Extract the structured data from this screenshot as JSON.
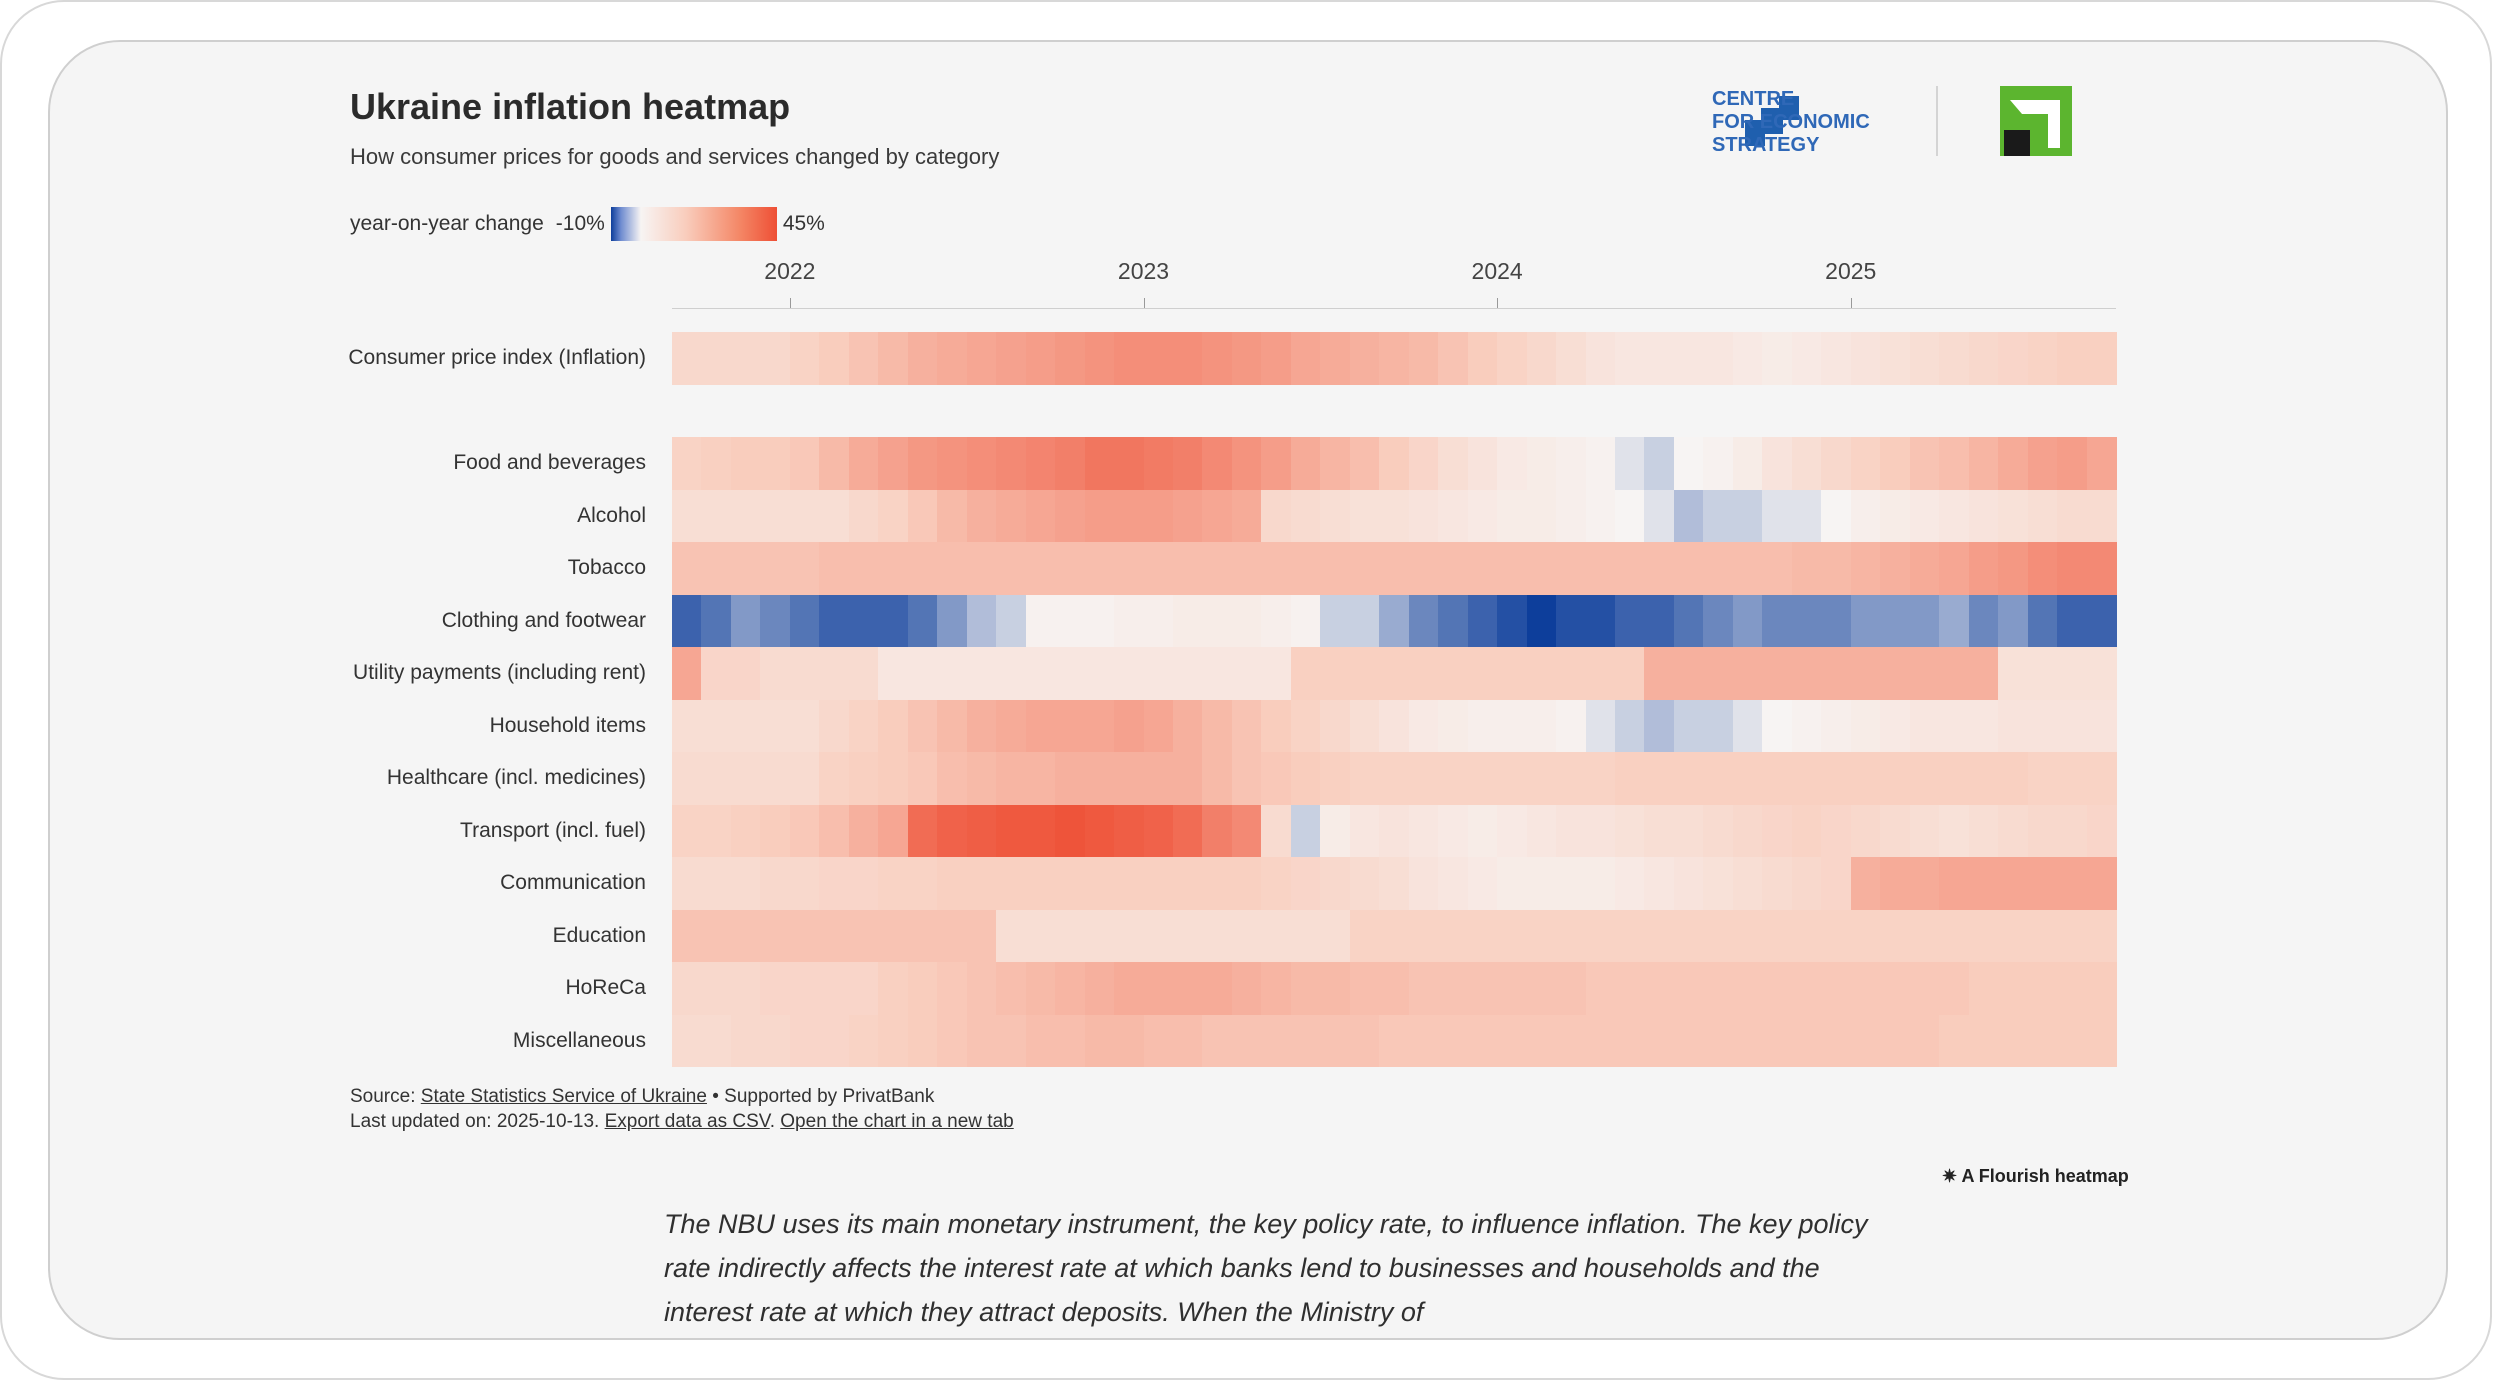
{
  "header": {
    "title": "Ukraine inflation heatmap",
    "subtitle": "How consumer prices for goods and services changed by category"
  },
  "legend": {
    "label": "year-on-year change",
    "min": "-10%",
    "max": "45%"
  },
  "brand": {
    "line1": "CENTRE",
    "line2": "FOR ECONOMIC",
    "line3": "STRATEGY"
  },
  "colors": {
    "negative_max": "#0d3e9b",
    "neutral": "#f7f4f3",
    "positive_max": "#ee4f35",
    "brand_blue": "#1f5fae",
    "bank_green": "#5cb52f"
  },
  "chart_data": {
    "type": "heatmap",
    "title": "Ukraine inflation heatmap",
    "subtitle": "How consumer prices for goods and services changed by category",
    "value_label": "year-on-year change",
    "color_range": [
      -10,
      45
    ],
    "x_ticks": [
      "2022",
      "2023",
      "2024",
      "2025"
    ],
    "x_start": "2021-09",
    "x_end": "2025-08",
    "rows": [
      {
        "name": "Consumer price index (Inflation)",
        "values": [
          10,
          10,
          10,
          10,
          12,
          14,
          16,
          18,
          20,
          21,
          22,
          23,
          24,
          25,
          26,
          27,
          27,
          27,
          26,
          25,
          24,
          22,
          21,
          20,
          19,
          18,
          16,
          14,
          12,
          10,
          8,
          6,
          5,
          5,
          5,
          5,
          4,
          3,
          4,
          5,
          6,
          7,
          8,
          9,
          10,
          11,
          12,
          13,
          13
        ]
      },
      {
        "name": "Food and beverages",
        "values": [
          12,
          13,
          14,
          14,
          15,
          18,
          21,
          23,
          25,
          26,
          27,
          28,
          29,
          30,
          32,
          32,
          31,
          30,
          28,
          26,
          24,
          21,
          19,
          17,
          14,
          11,
          8,
          6,
          4,
          3,
          2,
          1,
          -1,
          -2,
          0,
          1,
          3,
          6,
          8,
          10,
          12,
          14,
          16,
          17,
          19,
          21,
          23,
          24,
          22
        ]
      },
      {
        "name": "Alcohol",
        "values": [
          8,
          8,
          8,
          8,
          8,
          8,
          10,
          12,
          15,
          18,
          20,
          21,
          22,
          23,
          24,
          24,
          24,
          23,
          22,
          21,
          10,
          9,
          8,
          7,
          7,
          6,
          5,
          4,
          3,
          3,
          2,
          1,
          0,
          -1,
          -3,
          -2,
          -2,
          -1,
          -1,
          0,
          2,
          3,
          4,
          5,
          6,
          7,
          8,
          9,
          9
        ]
      },
      {
        "name": "Tobacco",
        "values": [
          16,
          16,
          16,
          16,
          16,
          17,
          17,
          17,
          17,
          17,
          17,
          17,
          17,
          17,
          17,
          17,
          17,
          17,
          17,
          17,
          17,
          17,
          17,
          17,
          17,
          17,
          17,
          17,
          17,
          17,
          17,
          17,
          17,
          17,
          17,
          17,
          17,
          17,
          18,
          18,
          19,
          20,
          21,
          22,
          24,
          25,
          27,
          28,
          28
        ]
      },
      {
        "name": "Clothing and footwear",
        "values": [
          -8,
          -7,
          -5,
          -6,
          -7,
          -8,
          -8,
          -8,
          -7,
          -5,
          -3,
          -2,
          1,
          1,
          1,
          2,
          2,
          3,
          3,
          3,
          2,
          1,
          -2,
          -2,
          -4,
          -6,
          -7,
          -8,
          -9,
          -10,
          -9,
          -9,
          -8,
          -8,
          -7,
          -6,
          -5,
          -6,
          -6,
          -6,
          -5,
          -5,
          -5,
          -4,
          -6,
          -5,
          -7,
          -8,
          -8
        ]
      },
      {
        "name": "Utility payments (including rent)",
        "values": [
          22,
          11,
          11,
          9,
          9,
          9,
          9,
          5,
          5,
          5,
          5,
          5,
          5,
          5,
          5,
          5,
          5,
          5,
          5,
          5,
          5,
          13,
          13,
          13,
          13,
          13,
          13,
          13,
          13,
          13,
          13,
          13,
          13,
          20,
          20,
          20,
          20,
          20,
          20,
          20,
          20,
          20,
          20,
          20,
          20,
          7,
          7,
          7,
          7
        ]
      },
      {
        "name": "Household items",
        "values": [
          8,
          8,
          8,
          8,
          8,
          10,
          12,
          14,
          16,
          18,
          20,
          21,
          22,
          22,
          22,
          23,
          22,
          20,
          18,
          16,
          14,
          12,
          10,
          8,
          6,
          4,
          3,
          2,
          2,
          2,
          1,
          -1,
          -2,
          -3,
          -2,
          -2,
          -1,
          0,
          1,
          2,
          3,
          4,
          5,
          5,
          5,
          6,
          6,
          6,
          6
        ]
      },
      {
        "name": "Healthcare (incl. medicines)",
        "values": [
          9,
          9,
          9,
          9,
          9,
          12,
          13,
          14,
          15,
          17,
          18,
          19,
          19,
          20,
          20,
          20,
          20,
          20,
          18,
          16,
          15,
          14,
          13,
          12,
          12,
          12,
          12,
          12,
          12,
          12,
          12,
          12,
          13,
          13,
          13,
          13,
          13,
          13,
          13,
          13,
          13,
          13,
          13,
          13,
          13,
          13,
          12,
          12,
          12
        ]
      },
      {
        "name": "Transport (incl. fuel)",
        "values": [
          12,
          12,
          13,
          14,
          15,
          17,
          20,
          22,
          34,
          36,
          37,
          38,
          38,
          39,
          38,
          37,
          36,
          34,
          30,
          28,
          9,
          -2,
          3,
          5,
          6,
          5,
          4,
          3,
          4,
          5,
          6,
          6,
          7,
          8,
          8,
          9,
          10,
          11,
          12,
          11,
          10,
          9,
          8,
          7,
          8,
          9,
          10,
          10,
          11
        ]
      },
      {
        "name": "Communication",
        "values": [
          9,
          9,
          9,
          10,
          10,
          11,
          11,
          12,
          12,
          13,
          13,
          13,
          13,
          13,
          13,
          13,
          13,
          13,
          13,
          13,
          12,
          11,
          10,
          9,
          8,
          6,
          5,
          4,
          3,
          3,
          3,
          3,
          4,
          5,
          6,
          7,
          8,
          9,
          10,
          11,
          20,
          21,
          21,
          22,
          22,
          22,
          22,
          22,
          22
        ]
      },
      {
        "name": "Education",
        "values": [
          16,
          16,
          16,
          16,
          16,
          16,
          16,
          16,
          16,
          16,
          16,
          8,
          8,
          8,
          8,
          8,
          8,
          8,
          8,
          8,
          8,
          8,
          8,
          12,
          12,
          12,
          12,
          12,
          12,
          12,
          12,
          12,
          12,
          12,
          12,
          12,
          12,
          12,
          12,
          12,
          12,
          12,
          12,
          12,
          12,
          12,
          12,
          12,
          12
        ]
      },
      {
        "name": "HoReCa",
        "values": [
          10,
          10,
          10,
          11,
          11,
          11,
          11,
          13,
          14,
          15,
          16,
          17,
          18,
          19,
          20,
          21,
          21,
          21,
          21,
          20,
          19,
          18,
          18,
          17,
          17,
          16,
          16,
          16,
          16,
          16,
          16,
          15,
          15,
          15,
          15,
          15,
          15,
          15,
          15,
          15,
          15,
          15,
          15,
          15,
          14,
          14,
          14,
          14,
          14
        ]
      },
      {
        "name": "Miscellaneous",
        "values": [
          9,
          9,
          10,
          10,
          11,
          11,
          12,
          13,
          14,
          15,
          16,
          16,
          17,
          17,
          18,
          18,
          17,
          17,
          16,
          16,
          16,
          16,
          16,
          16,
          15,
          15,
          15,
          15,
          15,
          15,
          15,
          15,
          15,
          15,
          15,
          15,
          15,
          15,
          15,
          15,
          15,
          15,
          15,
          14,
          14,
          14,
          14,
          14,
          14
        ]
      }
    ]
  },
  "footer": {
    "source_prefix": "Source:",
    "source_link": "State Statistics Service of Ukraine",
    "supported": "• Supported by PrivatBank",
    "updated": "Last updated on: 2025-10-13.",
    "export_link": "Export data as CSV",
    "open_link": "Open the chart in a new tab",
    "flourish": "A Flourish heatmap",
    "flourish_icon": "flourish-asterisk-icon"
  },
  "article": {
    "text": "The NBU uses its main monetary instrument, the key policy rate, to influence inflation. The key policy rate indirectly affects the interest rate at which banks lend to businesses and households and the interest rate at which they attract deposits. When the Ministry of"
  }
}
